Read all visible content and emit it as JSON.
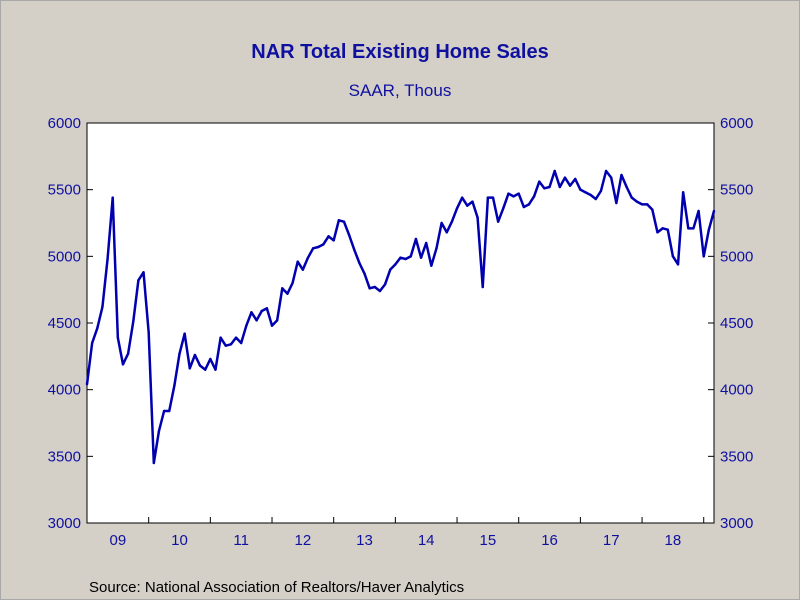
{
  "chart_data": {
    "type": "line",
    "title": "NAR Total Existing Home Sales",
    "subtitle": "SAAR, Thous",
    "source": "Source:  National Association of Realtors/Haver Analytics",
    "x_start": "2009-01",
    "x_end": "2019-03",
    "x_tick_labels": [
      "09",
      "10",
      "11",
      "12",
      "13",
      "14",
      "15",
      "16",
      "17",
      "18"
    ],
    "ylim": [
      3000,
      6000
    ],
    "y_ticks": [
      3000,
      3500,
      4000,
      4500,
      5000,
      5500,
      6000
    ],
    "y_tick_labels": [
      "3000",
      "3500",
      "4000",
      "4500",
      "5000",
      "5500",
      "6000"
    ],
    "grid": false,
    "y_axis_sides": [
      "left",
      "right"
    ],
    "line_color": "#0000b0",
    "series": [
      {
        "name": "",
        "x": [
          "2009-01",
          "2009-02",
          "2009-03",
          "2009-04",
          "2009-05",
          "2009-06",
          "2009-07",
          "2009-08",
          "2009-09",
          "2009-10",
          "2009-11",
          "2009-12",
          "2010-01",
          "2010-02",
          "2010-03",
          "2010-04",
          "2010-05",
          "2010-06",
          "2010-07",
          "2010-08",
          "2010-09",
          "2010-10",
          "2010-11",
          "2010-12",
          "2011-01",
          "2011-02",
          "2011-03",
          "2011-04",
          "2011-05",
          "2011-06",
          "2011-07",
          "2011-08",
          "2011-09",
          "2011-10",
          "2011-11",
          "2011-12",
          "2012-01",
          "2012-02",
          "2012-03",
          "2012-04",
          "2012-05",
          "2012-06",
          "2012-07",
          "2012-08",
          "2012-09",
          "2012-10",
          "2012-11",
          "2012-12",
          "2013-01",
          "2013-02",
          "2013-03",
          "2013-04",
          "2013-05",
          "2013-06",
          "2013-07",
          "2013-08",
          "2013-09",
          "2013-10",
          "2013-11",
          "2013-12",
          "2014-01",
          "2014-02",
          "2014-03",
          "2014-04",
          "2014-05",
          "2014-06",
          "2014-07",
          "2014-08",
          "2014-09",
          "2014-10",
          "2014-11",
          "2014-12",
          "2015-01",
          "2015-02",
          "2015-03",
          "2015-04",
          "2015-05",
          "2015-06",
          "2015-07",
          "2015-08",
          "2015-09",
          "2015-10",
          "2015-11",
          "2015-12",
          "2016-01",
          "2016-02",
          "2016-03",
          "2016-04",
          "2016-05",
          "2016-06",
          "2016-07",
          "2016-08",
          "2016-09",
          "2016-10",
          "2016-11",
          "2016-12",
          "2017-01",
          "2017-02",
          "2017-03",
          "2017-04",
          "2017-05",
          "2017-06",
          "2017-07",
          "2017-08",
          "2017-09",
          "2017-10",
          "2017-11",
          "2017-12",
          "2018-01",
          "2018-02",
          "2018-03",
          "2018-04",
          "2018-05",
          "2018-06",
          "2018-07",
          "2018-08",
          "2018-09",
          "2018-10",
          "2018-11",
          "2018-12",
          "2019-01",
          "2019-02",
          "2019-03"
        ],
        "values": [
          4040,
          4350,
          4460,
          4620,
          4980,
          5440,
          4390,
          4190,
          4270,
          4510,
          4820,
          4880,
          4430,
          3450,
          3690,
          3840,
          3840,
          4030,
          4270,
          4420,
          4160,
          4260,
          4180,
          4150,
          4230,
          4150,
          4390,
          4330,
          4340,
          4390,
          4350,
          4480,
          4580,
          4520,
          4590,
          4610,
          4480,
          4520,
          4760,
          4720,
          4800,
          4960,
          4900,
          4990,
          5060,
          5070,
          5090,
          5150,
          5120,
          5270,
          5260,
          5160,
          5050,
          4950,
          4870,
          4760,
          4770,
          4740,
          4790,
          4900,
          4940,
          4990,
          4980,
          5000,
          5130,
          4990,
          5100,
          4930,
          5060,
          5250,
          5180,
          5260,
          5360,
          5440,
          5380,
          5410,
          5290,
          4770,
          5440,
          5440,
          5260,
          5360,
          5470,
          5450,
          5470,
          5370,
          5390,
          5450,
          5560,
          5510,
          5520,
          5640,
          5520,
          5590,
          5530,
          5580,
          5500,
          5480,
          5460,
          5430,
          5490,
          5640,
          5590,
          5400,
          5610,
          5520,
          5440,
          5410,
          5390,
          5390,
          5350,
          5180,
          5210,
          5200,
          5000,
          4940,
          5480,
          5210,
          5210,
          5340,
          5000,
          5200,
          5340
        ]
      }
    ]
  }
}
